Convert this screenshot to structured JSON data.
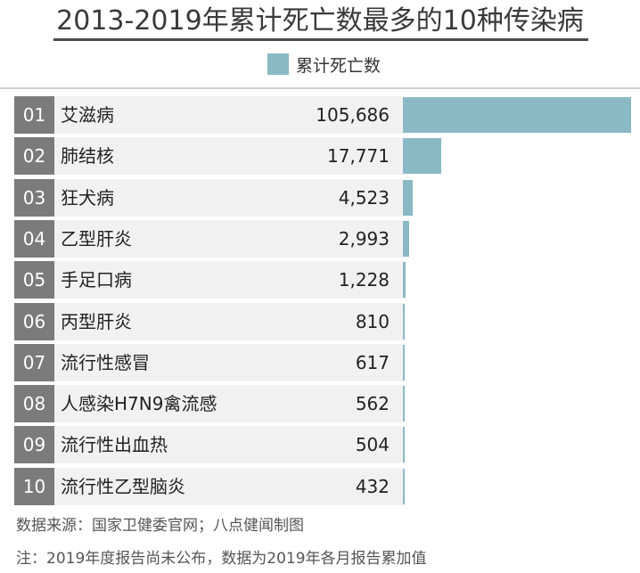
{
  "chart_data": {
    "type": "bar",
    "title": "2013-2019年累计死亡数最多的10种传染病",
    "legend": [
      "累计死亡数"
    ],
    "ranks": [
      "01",
      "02",
      "03",
      "04",
      "05",
      "06",
      "07",
      "08",
      "09",
      "10"
    ],
    "categories": [
      "艾滋病",
      "肺结核",
      "狂犬病",
      "乙型肝炎",
      "手足口病",
      "丙型肝炎",
      "流行性感冒",
      "人感染H7N9禽流感",
      "流行性出血热",
      "流行性乙型脑炎"
    ],
    "values": [
      105686,
      17771,
      4523,
      2993,
      1228,
      810,
      617,
      562,
      504,
      432
    ],
    "value_labels": [
      "105,686",
      "17,771",
      "4,523",
      "2,993",
      "1,228",
      "810",
      "617",
      "562",
      "504",
      "432"
    ],
    "color": "#8ab9c5",
    "orientation": "horizontal"
  },
  "footer": {
    "source": "数据来源：国家卫健委官网；八点健闻制图",
    "note": "注：2019年度报告尚未公布，数据为2019年各月报告累加值"
  }
}
